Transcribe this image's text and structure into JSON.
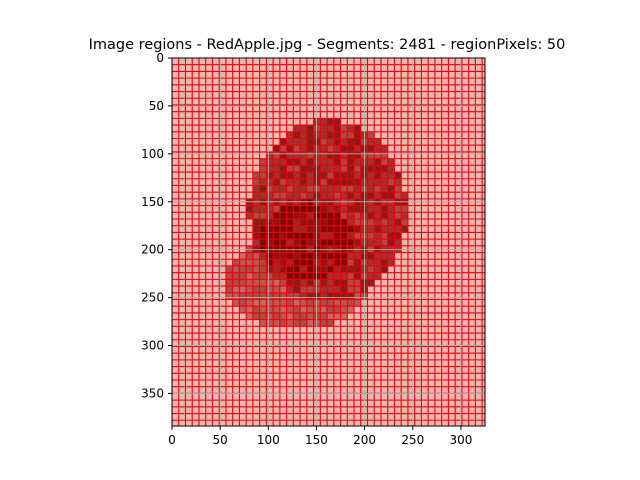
{
  "chart_data": {
    "type": "heatmap",
    "title": "Image regions - RedApple.jpg - Segments: 2481 - regionPixels: 50",
    "xlabel": "",
    "ylabel": "",
    "xlim": [
      0,
      325
    ],
    "ylim": [
      384,
      0
    ],
    "x_ticks": [
      0,
      50,
      100,
      150,
      200,
      250,
      300
    ],
    "y_ticks": [
      0,
      50,
      100,
      150,
      200,
      250,
      300,
      350
    ],
    "grid": true,
    "image": {
      "description_colors": {
        "background": "#eeb5b5",
        "segment_border": "#ee0000",
        "apple_dark": "#8a1010",
        "apple_mid": "#a83a3a",
        "apple_light": "#c26060"
      },
      "segment_size_px": 7,
      "apple_upper_center": [
        165,
        160
      ],
      "apple_upper_radius": [
        92,
        93
      ],
      "apple_lower_center": [
        128,
        230
      ],
      "apple_lower_radius": [
        75,
        50
      ]
    }
  },
  "colors": {
    "background": "#eeb5b5",
    "segment_border": "#ee0000",
    "apple_dark": "#7d0808",
    "apple_mid": "#a02828",
    "apple_light": "#b85050",
    "gridline": "#b0b0b0",
    "axis": "#000000"
  }
}
